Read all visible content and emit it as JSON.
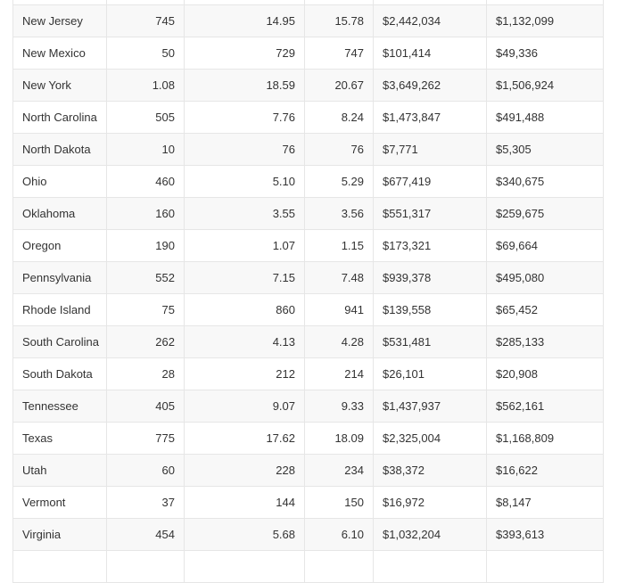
{
  "table": {
    "rows": [
      {
        "state": "",
        "c1": "",
        "c2": "",
        "c3": "",
        "c4": "",
        "c5": ""
      },
      {
        "state": "New Jersey",
        "c1": "745",
        "c2": "14.95",
        "c3": "15.78",
        "c4": "$2,442,034",
        "c5": "$1,132,099"
      },
      {
        "state": "New Mexico",
        "c1": "50",
        "c2": "729",
        "c3": "747",
        "c4": "$101,414",
        "c5": "$49,336"
      },
      {
        "state": "New York",
        "c1": "1.08",
        "c2": "18.59",
        "c3": "20.67",
        "c4": "$3,649,262",
        "c5": "$1,506,924"
      },
      {
        "state": "North Carolina",
        "c1": "505",
        "c2": "7.76",
        "c3": "8.24",
        "c4": "$1,473,847",
        "c5": "$491,488"
      },
      {
        "state": "North Dakota",
        "c1": "10",
        "c2": "76",
        "c3": "76",
        "c4": "$7,771",
        "c5": "$5,305"
      },
      {
        "state": "Ohio",
        "c1": "460",
        "c2": "5.10",
        "c3": "5.29",
        "c4": "$677,419",
        "c5": "$340,675"
      },
      {
        "state": "Oklahoma",
        "c1": "160",
        "c2": "3.55",
        "c3": "3.56",
        "c4": "$551,317",
        "c5": "$259,675"
      },
      {
        "state": "Oregon",
        "c1": "190",
        "c2": "1.07",
        "c3": "1.15",
        "c4": "$173,321",
        "c5": "$69,664"
      },
      {
        "state": "Pennsylvania",
        "c1": "552",
        "c2": "7.15",
        "c3": "7.48",
        "c4": "$939,378",
        "c5": "$495,080"
      },
      {
        "state": "Rhode Island",
        "c1": "75",
        "c2": "860",
        "c3": "941",
        "c4": "$139,558",
        "c5": "$65,452"
      },
      {
        "state": "South Carolina",
        "c1": "262",
        "c2": "4.13",
        "c3": "4.28",
        "c4": "$531,481",
        "c5": "$285,133"
      },
      {
        "state": "South Dakota",
        "c1": "28",
        "c2": "212",
        "c3": "214",
        "c4": "$26,101",
        "c5": "$20,908"
      },
      {
        "state": "Tennessee",
        "c1": "405",
        "c2": "9.07",
        "c3": "9.33",
        "c4": "$1,437,937",
        "c5": "$562,161"
      },
      {
        "state": "Texas",
        "c1": "775",
        "c2": "17.62",
        "c3": "18.09",
        "c4": "$2,325,004",
        "c5": "$1,168,809"
      },
      {
        "state": "Utah",
        "c1": "60",
        "c2": "228",
        "c3": "234",
        "c4": "$38,372",
        "c5": "$16,622"
      },
      {
        "state": "Vermont",
        "c1": "37",
        "c2": "144",
        "c3": "150",
        "c4": "$16,972",
        "c5": "$8,147"
      },
      {
        "state": "Virginia",
        "c1": "454",
        "c2": "5.68",
        "c3": "6.10",
        "c4": "$1,032,204",
        "c5": "$393,613"
      },
      {
        "state": "",
        "c1": "",
        "c2": "",
        "c3": "",
        "c4": "",
        "c5": ""
      }
    ]
  }
}
